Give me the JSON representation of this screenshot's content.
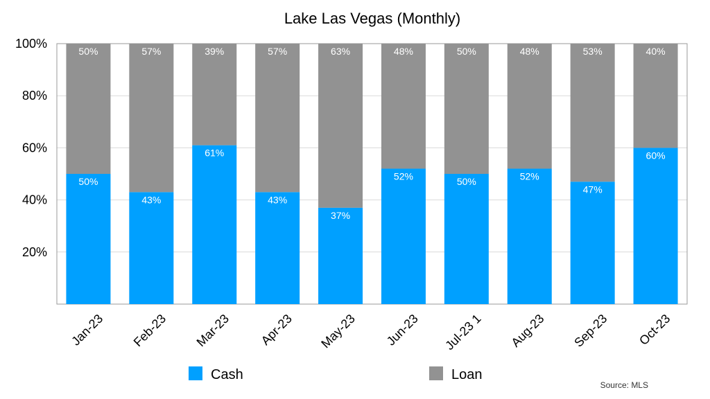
{
  "chart_data": {
    "type": "bar",
    "stacked": true,
    "title": "Lake Las Vegas (Monthly)",
    "xlabel": "",
    "ylabel": "",
    "categories": [
      "Jan-23",
      "Feb-23",
      "Mar-23",
      "Apr-23",
      "May-23",
      "Jun-23",
      "Jul-23 1",
      "Aug-23",
      "Sep-23",
      "Oct-23"
    ],
    "series": [
      {
        "name": "Cash",
        "color": "#00a0ff",
        "values": [
          50,
          43,
          61,
          43,
          37,
          52,
          50,
          52,
          47,
          60
        ]
      },
      {
        "name": "Loan",
        "color": "#929292",
        "values": [
          50,
          57,
          39,
          57,
          63,
          48,
          50,
          48,
          53,
          40
        ]
      }
    ],
    "ylim": [
      0,
      100
    ],
    "yticks": [
      {
        "value": 20,
        "label": "20%"
      },
      {
        "value": 40,
        "label": "40%"
      },
      {
        "value": 60,
        "label": "60%"
      },
      {
        "value": 80,
        "label": "80%"
      },
      {
        "value": 100,
        "label": "100%"
      }
    ],
    "value_suffix": "%",
    "grid": true,
    "legend_position": "bottom",
    "source": "Source: MLS"
  }
}
